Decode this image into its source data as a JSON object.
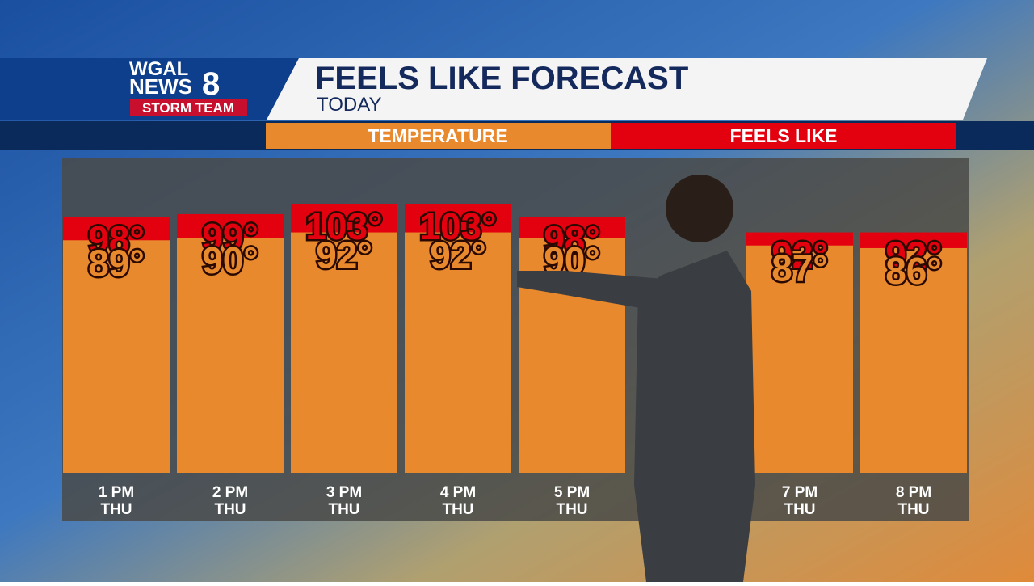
{
  "branding": {
    "station": "WGAL",
    "news": "NEWS",
    "channel": "8",
    "badge": "STORM TEAM"
  },
  "chart_data": {
    "type": "bar",
    "title": "FEELS LIKE FORECAST",
    "subtitle": "TODAY",
    "categories": [
      "1 PM",
      "2 PM",
      "3 PM",
      "4 PM",
      "5 PM",
      null,
      "7 PM",
      "8 PM"
    ],
    "days": [
      "THU",
      "THU",
      "THU",
      "THU",
      "THU",
      null,
      "THU",
      "THU"
    ],
    "series": [
      {
        "name": "TEMPERATURE",
        "color": "#e8892e",
        "values": [
          89,
          90,
          92,
          92,
          90,
          null,
          87,
          86
        ],
        "value_labels": [
          "89°",
          "90°",
          "92°",
          "92°",
          "90°",
          null,
          "87°",
          "86°"
        ]
      },
      {
        "name": "FEELS LIKE",
        "color": "#e3000f",
        "values": [
          98,
          99,
          103,
          103,
          98,
          null,
          92,
          92
        ],
        "value_labels": [
          "98°",
          "99°",
          "103°",
          "103°",
          "98°",
          null,
          "92°",
          "92°"
        ]
      }
    ]
  }
}
